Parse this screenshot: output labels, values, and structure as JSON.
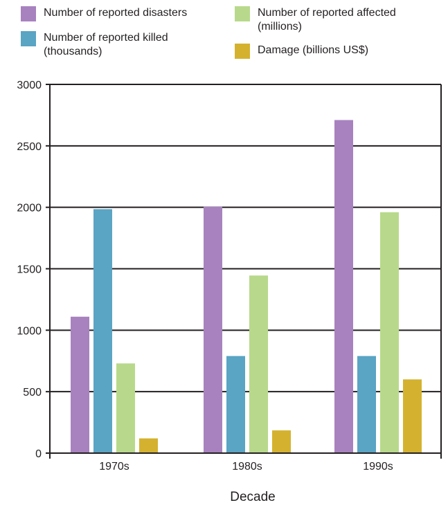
{
  "chart_data": {
    "type": "bar",
    "title": "",
    "xlabel": "Decade",
    "ylabel": "",
    "categories": [
      "1970s",
      "1980s",
      "1990s"
    ],
    "ylim": [
      0,
      3000
    ],
    "yticks": [
      0,
      500,
      1000,
      1500,
      2000,
      2500,
      3000
    ],
    "grid": true,
    "legend_position": "top",
    "series": [
      {
        "name": "Number of reported disasters",
        "color": "#a882bf",
        "values": [
          1110,
          2005,
          2710
        ]
      },
      {
        "name": "Number of reported killed\n(thousands)",
        "color": "#5aa4c4",
        "values": [
          1985,
          790,
          790
        ]
      },
      {
        "name": "Number of reported affected\n(millions)",
        "color": "#b8d98b",
        "values": [
          730,
          1445,
          1960
        ]
      },
      {
        "name": "Damage (billions US$)",
        "color": "#d4b22f",
        "values": [
          120,
          185,
          600
        ]
      }
    ]
  }
}
